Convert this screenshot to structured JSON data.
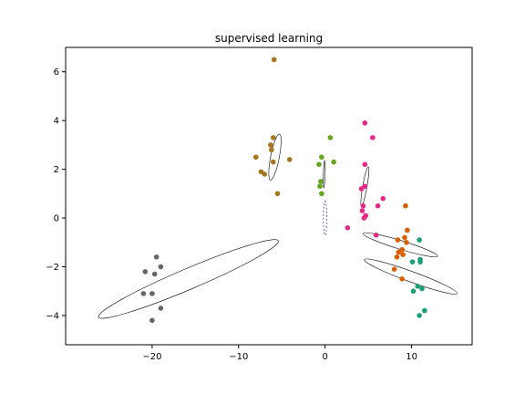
{
  "chart_data": {
    "type": "scatter",
    "title": "supervised learning",
    "xlabel": "",
    "ylabel": "",
    "xlim": [
      -30,
      17
    ],
    "ylim": [
      -5.2,
      7.0
    ],
    "xticks": [
      -20,
      -10,
      0,
      10
    ],
    "xtick_labels": [
      "−20",
      "−10",
      "0",
      "10"
    ],
    "yticks": [
      -4,
      -2,
      0,
      2,
      4,
      6
    ],
    "ytick_labels": [
      "−4",
      "−2",
      "0",
      "2",
      "4",
      "6"
    ],
    "grid": false,
    "series": [
      {
        "color": "#666666",
        "points": [
          [
            -19.5,
            -1.6
          ],
          [
            -19.0,
            -2.0
          ],
          [
            -20.8,
            -2.2
          ],
          [
            -19.7,
            -2.3
          ],
          [
            -21.0,
            -3.1
          ],
          [
            -20.0,
            -3.1
          ],
          [
            -19.0,
            -3.7
          ],
          [
            -20.0,
            -4.2
          ]
        ]
      },
      {
        "color": "#a6761d",
        "points": [
          [
            -5.9,
            6.5
          ],
          [
            -6.0,
            3.3
          ],
          [
            -6.3,
            3.0
          ],
          [
            -6.2,
            2.8
          ],
          [
            -8.0,
            2.5
          ],
          [
            -6.0,
            2.3
          ],
          [
            -4.1,
            2.4
          ],
          [
            -7.4,
            1.9
          ],
          [
            -7.0,
            1.8
          ],
          [
            -5.5,
            1.0
          ]
        ]
      },
      {
        "color": "#66a61e",
        "points": [
          [
            0.6,
            3.3
          ],
          [
            -0.4,
            2.5
          ],
          [
            -0.7,
            2.2
          ],
          [
            1.0,
            2.3
          ],
          [
            -0.5,
            1.5
          ],
          [
            -0.6,
            1.3
          ],
          [
            -0.4,
            1.0
          ]
        ]
      },
      {
        "color": "#e7298a",
        "points": [
          [
            4.6,
            3.9
          ],
          [
            5.5,
            3.3
          ],
          [
            4.6,
            2.2
          ],
          [
            4.6,
            1.3
          ],
          [
            4.2,
            1.2
          ],
          [
            6.7,
            0.8
          ],
          [
            6.1,
            0.5
          ],
          [
            4.4,
            0.5
          ],
          [
            4.3,
            0.3
          ],
          [
            4.7,
            0.1
          ],
          [
            4.5,
            0.0
          ],
          [
            2.6,
            -0.4
          ],
          [
            5.9,
            -0.7
          ]
        ]
      },
      {
        "color": "#d95f02",
        "points": [
          [
            9.3,
            0.5
          ],
          [
            9.5,
            -0.5
          ],
          [
            9.2,
            -0.8
          ],
          [
            8.4,
            -0.9
          ],
          [
            9.4,
            -1.0
          ],
          [
            8.9,
            -1.3
          ],
          [
            8.5,
            -1.4
          ],
          [
            9.0,
            -1.5
          ],
          [
            8.3,
            -1.6
          ],
          [
            8.0,
            -2.1
          ],
          [
            8.9,
            -2.5
          ]
        ]
      },
      {
        "color": "#1b9e77",
        "points": [
          [
            10.9,
            -0.9
          ],
          [
            10.1,
            -1.8
          ],
          [
            11.0,
            -1.7
          ],
          [
            11.0,
            -1.8
          ],
          [
            10.2,
            -3.0
          ],
          [
            10.7,
            -2.8
          ],
          [
            11.2,
            -2.9
          ],
          [
            11.5,
            -3.8
          ],
          [
            10.9,
            -4.0
          ]
        ]
      }
    ],
    "ellipses": [
      {
        "cx": -15.8,
        "cy": -2.5,
        "rx": 11.3,
        "ry": 1.2,
        "angle_deg": 23,
        "color": "#000000",
        "dashed": false
      },
      {
        "cx": -5.8,
        "cy": 2.5,
        "rx": 2.7,
        "ry": 0.5,
        "angle_deg": 79,
        "color": "#000000",
        "dashed": false
      },
      {
        "cx": -0.1,
        "cy": 1.8,
        "rx": 1.6,
        "ry": 0.1,
        "angle_deg": 88,
        "color": "#000000",
        "dashed": false
      },
      {
        "cx": 0.0,
        "cy": 0.0,
        "rx": 2.0,
        "ry": 0.2,
        "angle_deg": 90,
        "color": "#0000cc",
        "dashed": true
      },
      {
        "cx": 4.6,
        "cy": 1.3,
        "rx": 2.3,
        "ry": 0.25,
        "angle_deg": 80,
        "color": "#000000",
        "dashed": false
      },
      {
        "cx": 8.7,
        "cy": -1.1,
        "rx": 4.5,
        "ry": 0.5,
        "angle_deg": -17,
        "color": "#000000",
        "dashed": false
      },
      {
        "cx": 9.9,
        "cy": -2.4,
        "rx": 5.7,
        "ry": 0.6,
        "angle_deg": -20,
        "color": "#000000",
        "dashed": false
      }
    ]
  }
}
